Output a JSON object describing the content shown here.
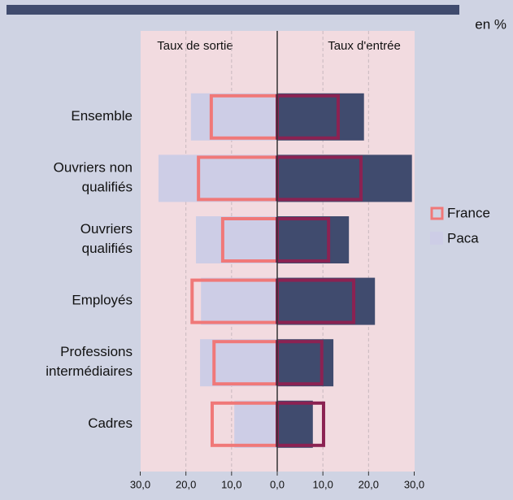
{
  "chart_data": {
    "type": "butterfly",
    "unit_label": "en %",
    "left_label": "Taux de sortie",
    "right_label": "Taux d'entrée",
    "categories": [
      [
        "Ensemble"
      ],
      [
        "Ouvriers non",
        "qualifiés"
      ],
      [
        "Ouvriers",
        "qualifiés"
      ],
      [
        "Employés"
      ],
      [
        "Professions",
        "intermédiaires"
      ],
      [
        "Cadres"
      ]
    ],
    "series": [
      {
        "name": "Paca",
        "style": "filled",
        "color_sortie": "#cdcde6",
        "color_entree": "#404b6e",
        "sortie": [
          18.9,
          26.0,
          17.8,
          16.7,
          16.9,
          9.4
        ],
        "entree": [
          19.0,
          29.5,
          15.7,
          21.4,
          12.3,
          7.8
        ]
      },
      {
        "name": "France",
        "style": "outline",
        "color_sortie": "#f07878",
        "color_entree": "#8b2252",
        "sortie": [
          14.8,
          17.6,
          12.3,
          19.0,
          14.2,
          14.6
        ],
        "entree": [
          13.7,
          18.7,
          11.6,
          17.1,
          10.1,
          10.5
        ]
      }
    ],
    "xlim": [
      0,
      30
    ],
    "xticks_left": [
      {
        "value": 30,
        "label": "30,0"
      },
      {
        "value": 20,
        "label": "20,0"
      },
      {
        "value": 10,
        "label": "10,0"
      }
    ],
    "xticks_right": [
      {
        "value": 0,
        "label": "0,0"
      },
      {
        "value": 10,
        "label": "10,0"
      },
      {
        "value": 20,
        "label": "20,0"
      },
      {
        "value": 30,
        "label": "30,0"
      }
    ],
    "grid": true
  }
}
